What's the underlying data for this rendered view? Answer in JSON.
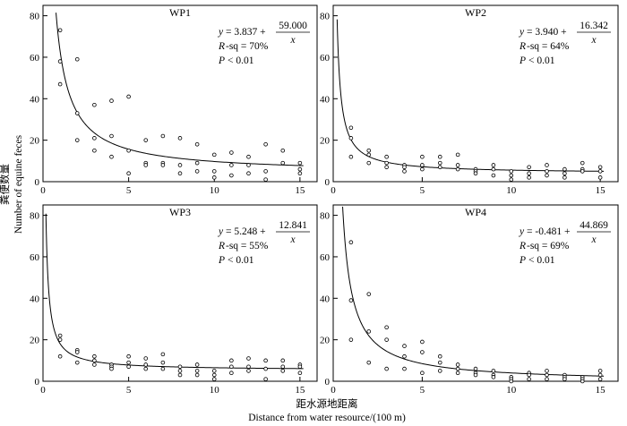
{
  "figure": {
    "ylabel_cn": "粪便数量",
    "ylabel_en": "Number of equine feces",
    "xlabel_cn": "距水源地距离",
    "xlabel_en": "Distance from water resource/(100 m)"
  },
  "chart_data": [
    {
      "type": "scatter",
      "title": "WP1",
      "xlim": [
        0,
        16
      ],
      "ylim": [
        0,
        85
      ],
      "xticks": [
        "0",
        "5",
        "10",
        "15"
      ],
      "yticks": [
        "0",
        "20",
        "40",
        "60",
        "80"
      ],
      "fit": {
        "a": 3.837,
        "b": 59.0,
        "x_start": 0.76
      },
      "equation": {
        "y": "y",
        "eq_lhs": "= 3.837 +",
        "num": "59.000",
        "den": "x",
        "r_label": "R",
        "rsq": "-sq = 70%",
        "p_label": "P",
        "p_value": "< 0.01"
      },
      "points": [
        [
          1,
          73
        ],
        [
          1,
          58
        ],
        [
          1,
          47
        ],
        [
          2,
          59
        ],
        [
          2,
          33
        ],
        [
          2,
          20
        ],
        [
          3,
          37
        ],
        [
          3,
          21
        ],
        [
          3,
          15
        ],
        [
          4,
          39
        ],
        [
          4,
          22
        ],
        [
          4,
          12
        ],
        [
          5,
          41
        ],
        [
          5,
          15
        ],
        [
          5,
          4
        ],
        [
          6,
          20
        ],
        [
          6,
          9
        ],
        [
          6,
          8
        ],
        [
          7,
          22
        ],
        [
          7,
          9
        ],
        [
          7,
          8
        ],
        [
          8,
          21
        ],
        [
          8,
          8
        ],
        [
          8,
          4
        ],
        [
          9,
          18
        ],
        [
          9,
          9
        ],
        [
          9,
          5
        ],
        [
          10,
          13
        ],
        [
          10,
          5
        ],
        [
          10,
          2
        ],
        [
          11,
          14
        ],
        [
          11,
          8
        ],
        [
          11,
          3
        ],
        [
          12,
          12
        ],
        [
          12,
          8
        ],
        [
          12,
          4
        ],
        [
          13,
          18
        ],
        [
          13,
          5
        ],
        [
          13,
          1
        ],
        [
          14,
          15
        ],
        [
          14,
          9
        ],
        [
          15,
          9
        ],
        [
          15,
          6
        ],
        [
          15,
          4
        ]
      ]
    },
    {
      "type": "scatter",
      "title": "WP2",
      "xlim": [
        0,
        16
      ],
      "ylim": [
        0,
        85
      ],
      "xticks": [
        "0",
        "5",
        "10",
        "15"
      ],
      "yticks": [
        "0",
        "20",
        "40",
        "60",
        "80"
      ],
      "fit": {
        "a": 3.94,
        "b": 16.342,
        "x_start": 0.22
      },
      "equation": {
        "y": "y",
        "eq_lhs": "= 3.940 +",
        "num": "16.342",
        "den": "x",
        "r_label": "R",
        "rsq": "-sq = 64%",
        "p_label": "P",
        "p_value": "< 0.01"
      },
      "points": [
        [
          1,
          26
        ],
        [
          1,
          21
        ],
        [
          1,
          12
        ],
        [
          2,
          15
        ],
        [
          2,
          13
        ],
        [
          2,
          9
        ],
        [
          3,
          12
        ],
        [
          3,
          9
        ],
        [
          3,
          7
        ],
        [
          4,
          8
        ],
        [
          4,
          7
        ],
        [
          4,
          5
        ],
        [
          5,
          12
        ],
        [
          5,
          8
        ],
        [
          5,
          6
        ],
        [
          6,
          12
        ],
        [
          6,
          9
        ],
        [
          6,
          7
        ],
        [
          7,
          13
        ],
        [
          7,
          8
        ],
        [
          7,
          6
        ],
        [
          8,
          6
        ],
        [
          8,
          5
        ],
        [
          8,
          4
        ],
        [
          9,
          8
        ],
        [
          9,
          6
        ],
        [
          9,
          3
        ],
        [
          10,
          5
        ],
        [
          10,
          3
        ],
        [
          10,
          1
        ],
        [
          11,
          7
        ],
        [
          11,
          4
        ],
        [
          11,
          2
        ],
        [
          12,
          8
        ],
        [
          12,
          5
        ],
        [
          12,
          3
        ],
        [
          13,
          6
        ],
        [
          13,
          4
        ],
        [
          13,
          2
        ],
        [
          14,
          9
        ],
        [
          14,
          6
        ],
        [
          14,
          5
        ],
        [
          15,
          7
        ],
        [
          15,
          5
        ],
        [
          15,
          2
        ]
      ]
    },
    {
      "type": "scatter",
      "title": "WP3",
      "xlim": [
        0,
        16
      ],
      "ylim": [
        0,
        85
      ],
      "xticks": [
        "0",
        "5",
        "10",
        "15"
      ],
      "yticks": [
        "0",
        "20",
        "40",
        "60",
        "80"
      ],
      "fit": {
        "a": 5.248,
        "b": 12.841,
        "x_start": 0.17
      },
      "equation": {
        "y": "y",
        "eq_lhs": "= 5.248 +",
        "num": "12.841",
        "den": "x",
        "r_label": "R",
        "rsq": "-sq = 55%",
        "p_label": "P",
        "p_value": "< 0.01"
      },
      "points": [
        [
          1,
          22
        ],
        [
          1,
          20
        ],
        [
          1,
          12
        ],
        [
          2,
          15
        ],
        [
          2,
          14
        ],
        [
          2,
          9
        ],
        [
          3,
          12
        ],
        [
          3,
          10
        ],
        [
          3,
          8
        ],
        [
          4,
          8
        ],
        [
          4,
          7
        ],
        [
          4,
          6
        ],
        [
          5,
          12
        ],
        [
          5,
          9
        ],
        [
          5,
          7
        ],
        [
          6,
          11
        ],
        [
          6,
          8
        ],
        [
          6,
          6
        ],
        [
          7,
          13
        ],
        [
          7,
          9
        ],
        [
          7,
          6
        ],
        [
          8,
          7
        ],
        [
          8,
          5
        ],
        [
          8,
          3
        ],
        [
          9,
          8
        ],
        [
          9,
          5
        ],
        [
          9,
          3
        ],
        [
          10,
          5
        ],
        [
          10,
          3
        ],
        [
          10,
          1
        ],
        [
          11,
          10
        ],
        [
          11,
          7
        ],
        [
          11,
          4
        ],
        [
          12,
          11
        ],
        [
          12,
          7
        ],
        [
          12,
          5
        ],
        [
          13,
          10
        ],
        [
          13,
          6
        ],
        [
          13,
          1
        ],
        [
          14,
          10
        ],
        [
          14,
          7
        ],
        [
          14,
          5
        ],
        [
          15,
          8
        ],
        [
          15,
          7
        ],
        [
          15,
          4
        ]
      ]
    },
    {
      "type": "scatter",
      "title": "WP4",
      "xlim": [
        0,
        16
      ],
      "ylim": [
        0,
        85
      ],
      "xticks": [
        "0",
        "5",
        "10",
        "15"
      ],
      "yticks": [
        "0",
        "20",
        "40",
        "60",
        "80"
      ],
      "fit": {
        "a": -0.481,
        "b": 44.869,
        "x_start": 0.53
      },
      "equation": {
        "y": "y",
        "eq_lhs": "= -0.481 +",
        "num": "44.869",
        "den": "x",
        "r_label": "R",
        "rsq": "-sq = 69%",
        "p_label": "P",
        "p_value": "< 0.01"
      },
      "points": [
        [
          1,
          67
        ],
        [
          1,
          39
        ],
        [
          1,
          20
        ],
        [
          2,
          42
        ],
        [
          2,
          24
        ],
        [
          2,
          9
        ],
        [
          3,
          26
        ],
        [
          3,
          20
        ],
        [
          3,
          6
        ],
        [
          4,
          17
        ],
        [
          4,
          12
        ],
        [
          4,
          6
        ],
        [
          5,
          19
        ],
        [
          5,
          14
        ],
        [
          5,
          4
        ],
        [
          6,
          12
        ],
        [
          6,
          9
        ],
        [
          6,
          5
        ],
        [
          7,
          8
        ],
        [
          7,
          6
        ],
        [
          7,
          4
        ],
        [
          8,
          6
        ],
        [
          8,
          4
        ],
        [
          8,
          3
        ],
        [
          9,
          5
        ],
        [
          9,
          3
        ],
        [
          9,
          2
        ],
        [
          10,
          2
        ],
        [
          10,
          1
        ],
        [
          10,
          0
        ],
        [
          11,
          4
        ],
        [
          11,
          3
        ],
        [
          11,
          1
        ],
        [
          12,
          5
        ],
        [
          12,
          3
        ],
        [
          12,
          1
        ],
        [
          13,
          3
        ],
        [
          13,
          2
        ],
        [
          13,
          1
        ],
        [
          14,
          2
        ],
        [
          14,
          1
        ],
        [
          14,
          0
        ],
        [
          15,
          5
        ],
        [
          15,
          3
        ],
        [
          15,
          1
        ]
      ]
    }
  ]
}
